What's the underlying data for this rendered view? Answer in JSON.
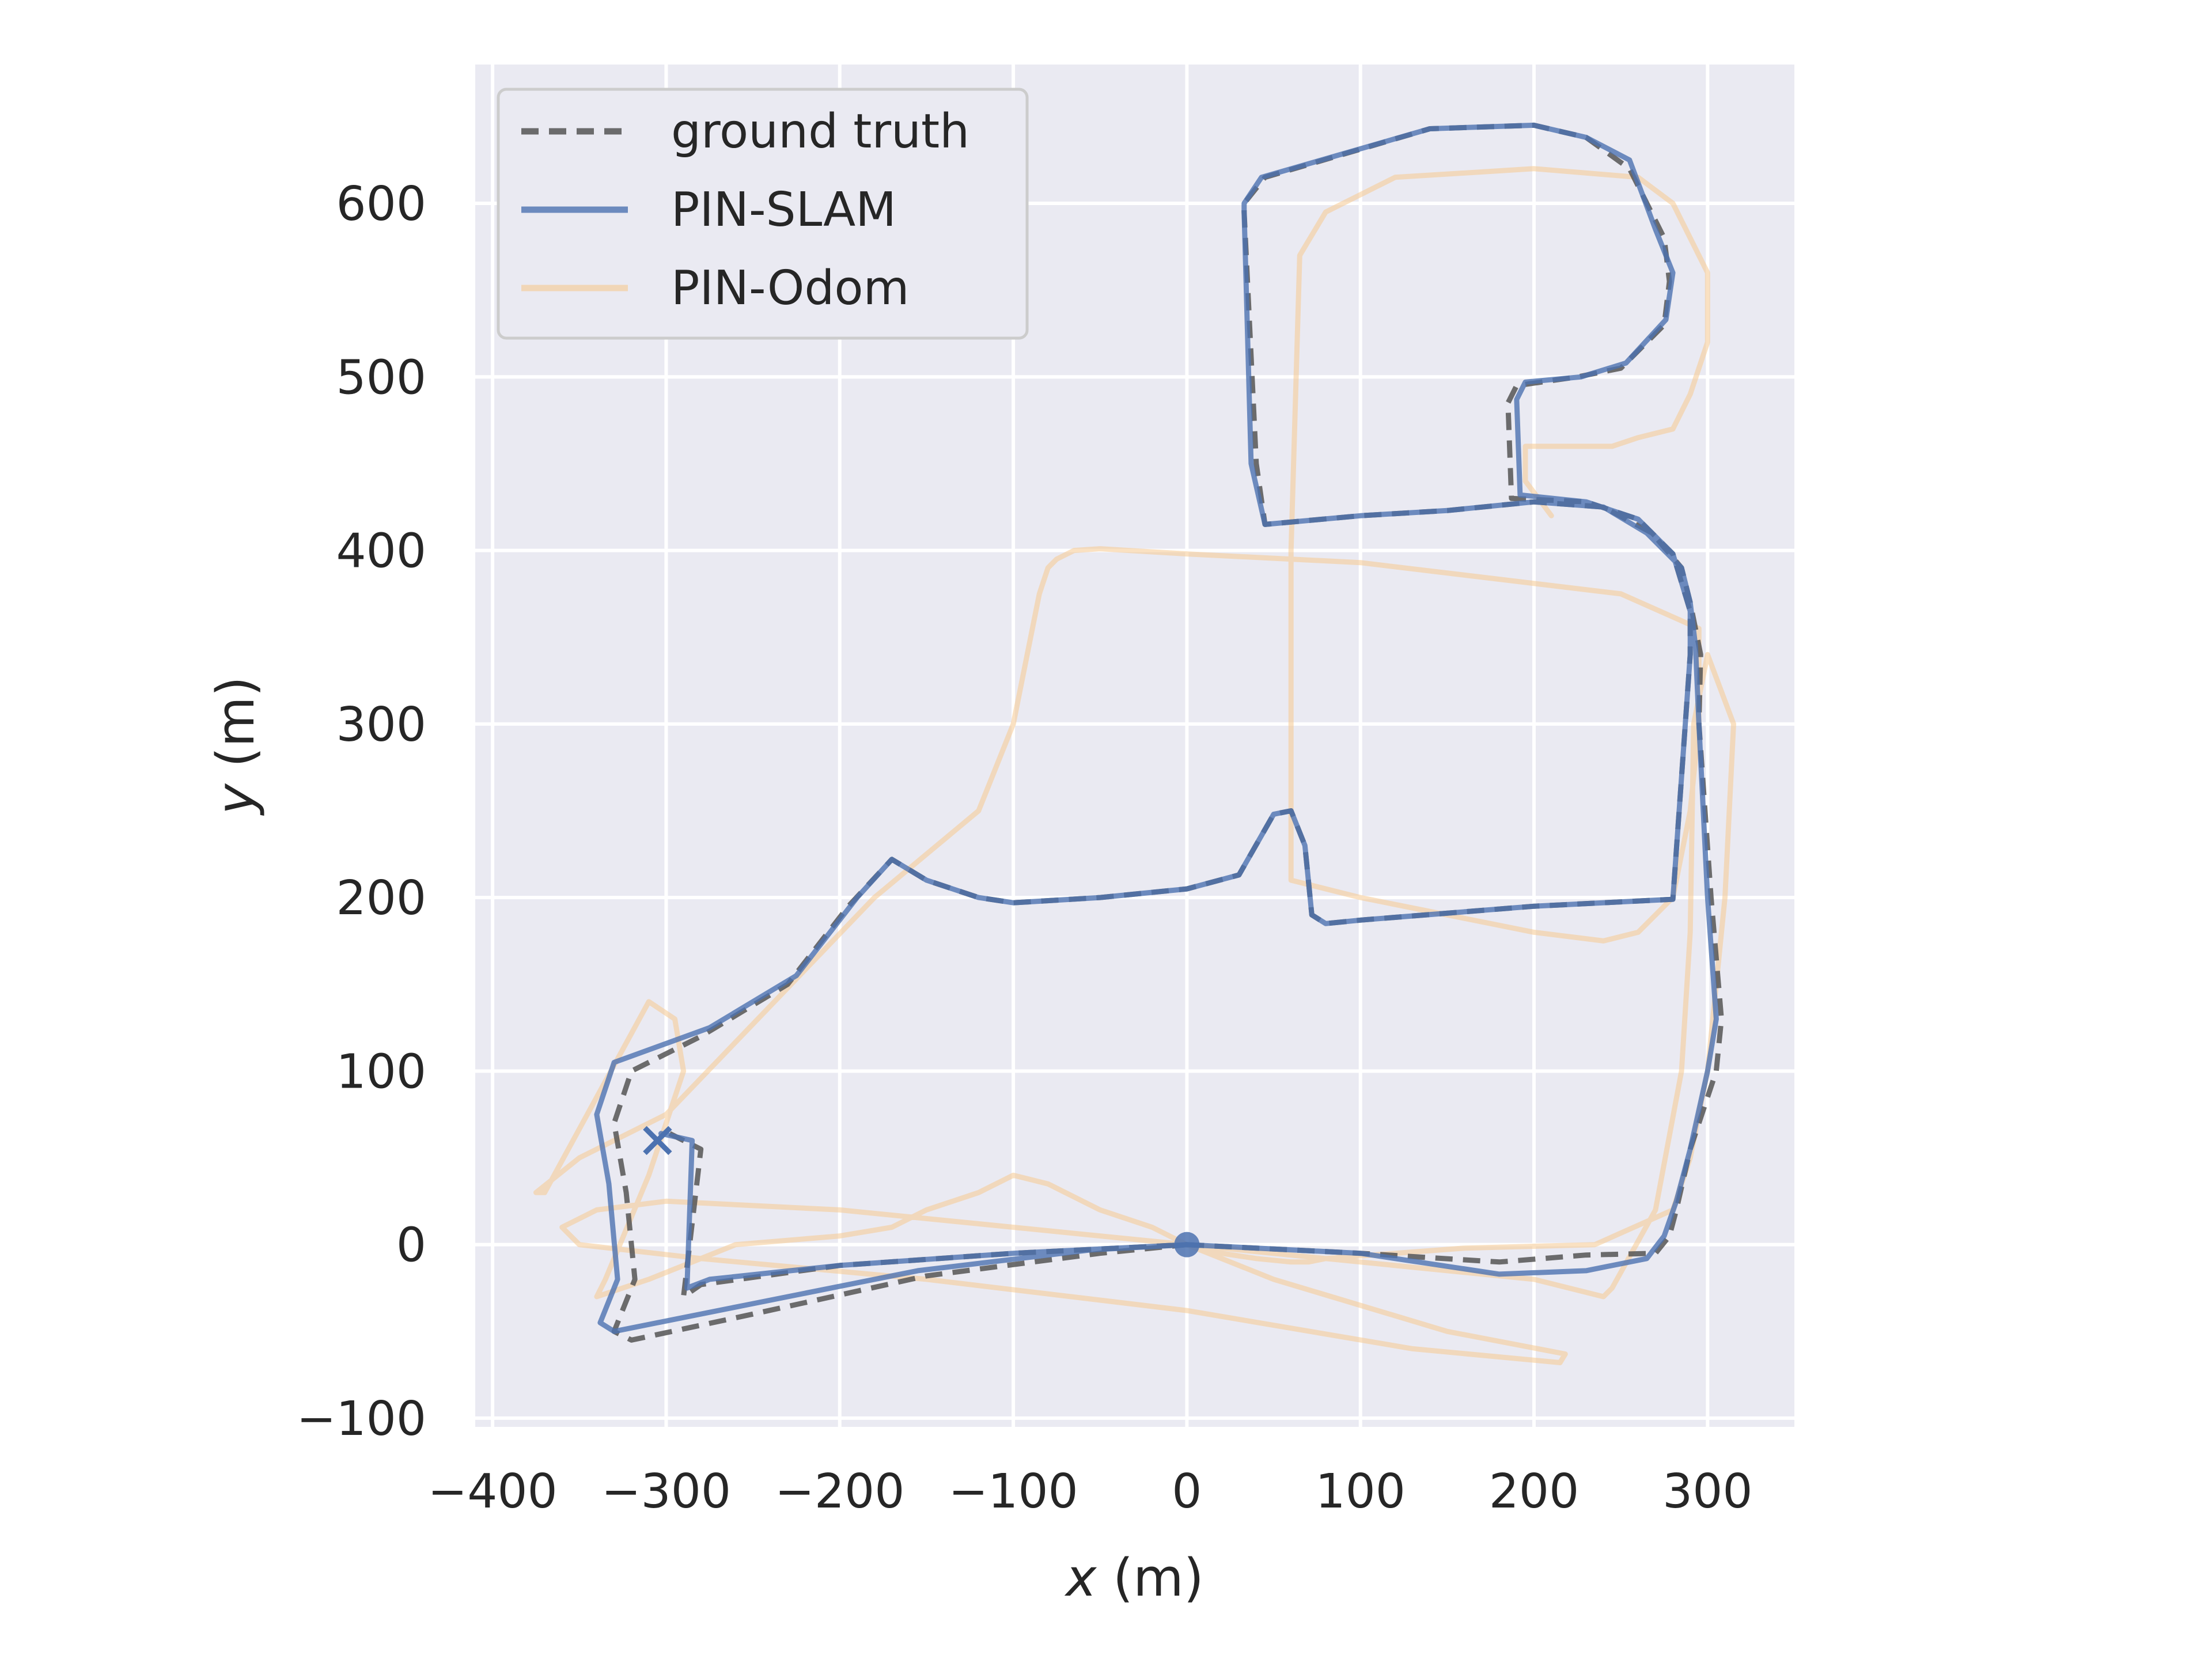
{
  "chart_data": {
    "type": "line",
    "title": "",
    "xlabel": {
      "var": "x",
      "unit": " (m)"
    },
    "ylabel": {
      "var": "y",
      "unit": " (m)"
    },
    "xlim": [
      -410,
      350
    ],
    "ylim": [
      -105,
      680
    ],
    "xticks": [
      -400,
      -300,
      -200,
      -100,
      0,
      100,
      200,
      300
    ],
    "yticks": [
      -100,
      0,
      100,
      200,
      300,
      400,
      500,
      600
    ],
    "xtick_labels": [
      "−400",
      "−300",
      "−200",
      "−100",
      "0",
      "100",
      "200",
      "300"
    ],
    "ytick_labels": [
      "−100",
      "0",
      "100",
      "200",
      "300",
      "400",
      "500",
      "600"
    ],
    "grid": true,
    "legend_position": "top-left",
    "start_marker": {
      "symbol": "circle",
      "x": 0,
      "y": 0
    },
    "end_marker": {
      "symbol": "x",
      "x": -305,
      "y": 60
    },
    "series": [
      {
        "name": "ground truth",
        "style": "dashed",
        "color": "#555555",
        "x": [
          0,
          100,
          180,
          230,
          270,
          278,
          282,
          290,
          305,
          308,
          302,
          295,
          296,
          290,
          285,
          268,
          240,
          200,
          150,
          100,
          45,
          40,
          33,
          33,
          45,
          140,
          200,
          230,
          255,
          275,
          278,
          275,
          250,
          225,
          190,
          185,
          187,
          230,
          260,
          280,
          290,
          290,
          280,
          200,
          100,
          80,
          72,
          70,
          68,
          60,
          50,
          30,
          0,
          -50,
          -100,
          -120,
          -150,
          -170,
          -195,
          -230,
          -280,
          -320,
          -330,
          -323,
          -318,
          -330,
          -320,
          -250,
          -150,
          -50,
          0,
          -100,
          -200,
          -280,
          -290,
          -290,
          -280,
          -298
        ],
        "y": [
          0,
          -5,
          -10,
          -6,
          -5,
          5,
          20,
          55,
          100,
          130,
          200,
          300,
          340,
          370,
          390,
          410,
          425,
          428,
          423,
          420,
          415,
          450,
          595,
          600,
          615,
          643,
          645,
          638,
          620,
          580,
          555,
          530,
          505,
          500,
          495,
          485,
          430,
          428,
          418,
          398,
          365,
          340,
          199,
          195,
          187,
          185,
          190,
          210,
          230,
          250,
          248,
          213,
          205,
          200,
          197,
          200,
          210,
          222,
          195,
          150,
          120,
          100,
          70,
          30,
          -20,
          -50,
          -55,
          -40,
          -18,
          -5,
          0,
          -5,
          -12,
          -23,
          -30,
          -30,
          55,
          64
        ]
      },
      {
        "name": "PIN-SLAM",
        "style": "solid",
        "color": "#4c72b0",
        "x": [
          0,
          100,
          180,
          230,
          265,
          275,
          282,
          290,
          300,
          305,
          300,
          295,
          293,
          290,
          285,
          265,
          240,
          200,
          150,
          100,
          45,
          37,
          33,
          33,
          43,
          140,
          200,
          230,
          255,
          270,
          280,
          276,
          253,
          227,
          195,
          190,
          192,
          230,
          260,
          280,
          290,
          290,
          280,
          200,
          100,
          80,
          72,
          70,
          68,
          60,
          50,
          30,
          0,
          -50,
          -100,
          -120,
          -150,
          -170,
          -190,
          -225,
          -275,
          -330,
          -340,
          -333,
          -328,
          -338,
          -330,
          -255,
          -155,
          -55,
          0,
          -100,
          -200,
          -275,
          -288,
          -288,
          -285,
          -303
        ],
        "y": [
          0,
          -5,
          -17,
          -15,
          -8,
          5,
          25,
          55,
          100,
          130,
          200,
          300,
          345,
          370,
          390,
          410,
          425,
          428,
          423,
          420,
          415,
          450,
          595,
          600,
          615,
          643,
          645,
          638,
          625,
          585,
          560,
          533,
          508,
          500,
          497,
          487,
          432,
          428,
          418,
          398,
          365,
          340,
          199,
          195,
          187,
          185,
          190,
          210,
          230,
          250,
          248,
          213,
          205,
          200,
          197,
          200,
          210,
          222,
          200,
          155,
          125,
          105,
          75,
          35,
          -20,
          -45,
          -50,
          -35,
          -15,
          -3,
          0,
          -5,
          -12,
          -20,
          -25,
          -25,
          60,
          64
        ]
      },
      {
        "name": "PIN-Odom",
        "style": "solid",
        "color": "#f5c890",
        "x": [
          0,
          50,
          150,
          218,
          215,
          130,
          0,
          -150,
          -280,
          -350,
          -360,
          -340,
          -300,
          -200,
          -100,
          0,
          100,
          200,
          240,
          245,
          270,
          285,
          290,
          292,
          300,
          315,
          310,
          300,
          290,
          280,
          235,
          160,
          120,
          80,
          70,
          60,
          40,
          20,
          0,
          -20,
          -50,
          -80,
          -100,
          -120,
          -150,
          -170,
          -200,
          -260,
          -310,
          -340,
          -335,
          -310,
          -290,
          -295,
          -310,
          -370,
          -375,
          -350,
          -300,
          -180,
          -120,
          -100,
          -90,
          -85,
          -80,
          -75,
          -65,
          -50,
          0,
          100,
          250,
          295,
          295,
          290,
          280,
          260,
          240,
          200,
          100,
          60,
          60,
          65,
          80,
          90,
          120,
          200,
          260,
          280,
          300,
          300,
          290,
          280,
          260,
          245,
          210,
          195,
          195,
          210
        ],
        "y": [
          0,
          -20,
          -50,
          -63,
          -68,
          -60,
          -38,
          -20,
          -8,
          0,
          10,
          20,
          25,
          20,
          10,
          0,
          -10,
          -20,
          -30,
          -25,
          20,
          100,
          180,
          300,
          340,
          300,
          200,
          100,
          50,
          20,
          0,
          -2,
          -5,
          -8,
          -10,
          -10,
          -8,
          -5,
          0,
          10,
          20,
          35,
          40,
          30,
          20,
          10,
          5,
          0,
          -20,
          -30,
          -20,
          40,
          100,
          130,
          140,
          30,
          30,
          50,
          75,
          200,
          250,
          300,
          350,
          375,
          390,
          395,
          400,
          401,
          398,
          393,
          375,
          355,
          300,
          250,
          200,
          180,
          175,
          180,
          200,
          210,
          400,
          570,
          595,
          600,
          615,
          620,
          615,
          600,
          560,
          520,
          490,
          470,
          465,
          460,
          460,
          460,
          440,
          420
        ]
      }
    ]
  }
}
